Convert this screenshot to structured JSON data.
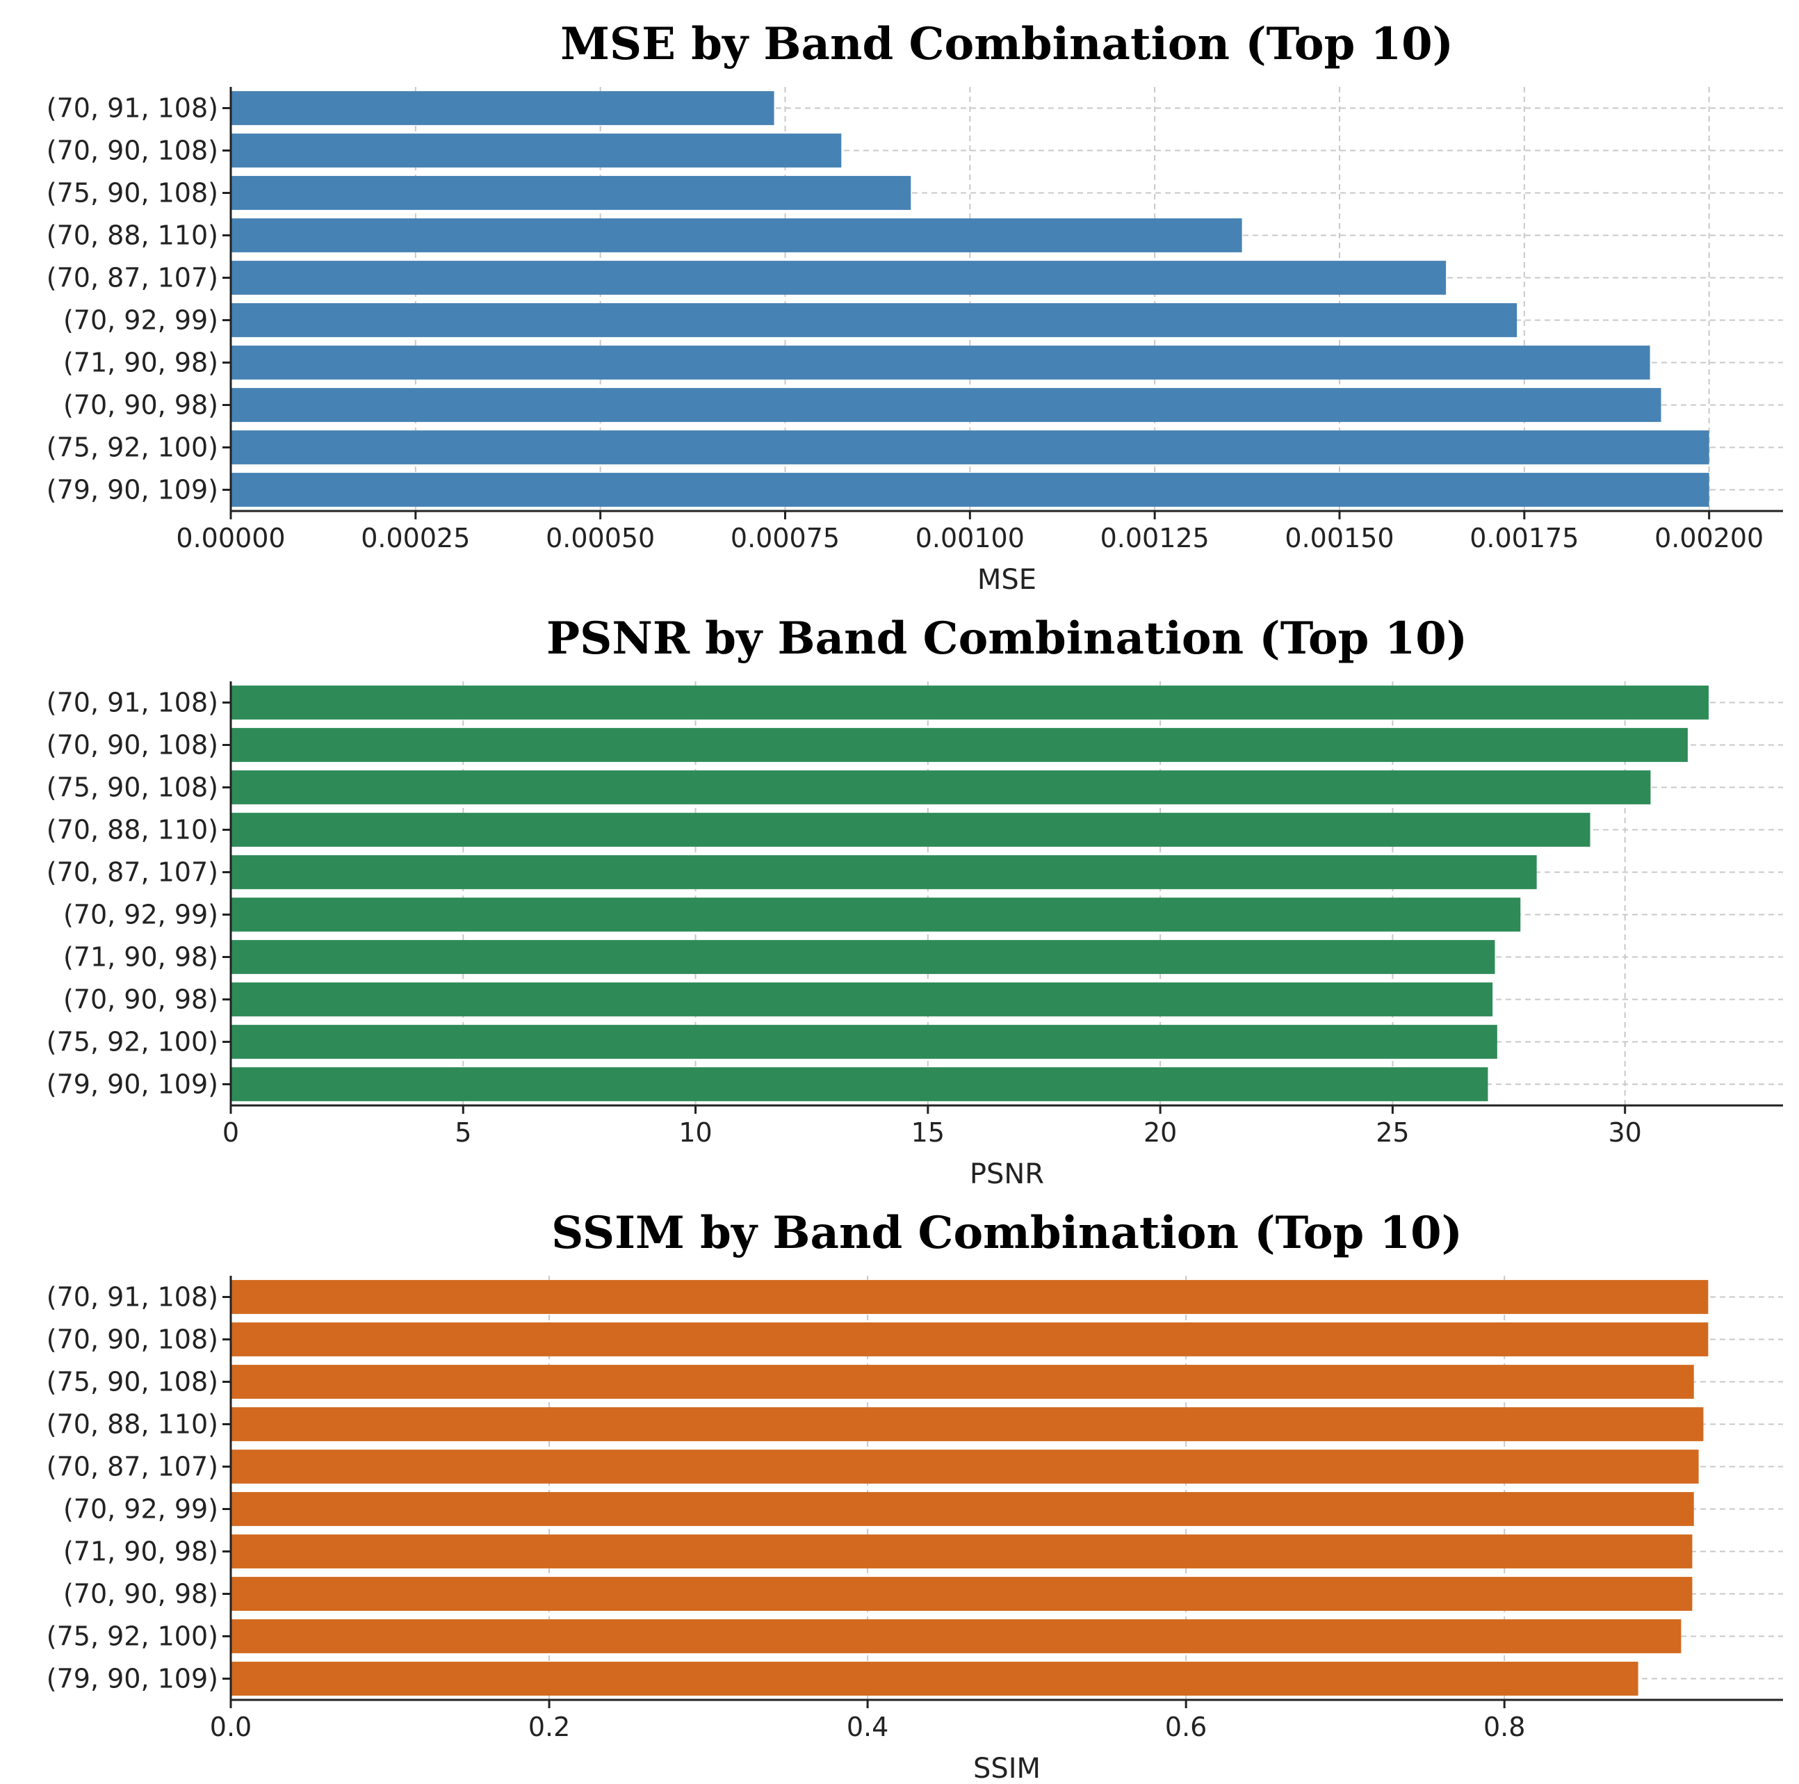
{
  "chart_data": [
    {
      "type": "bar",
      "orientation": "horizontal",
      "title": "MSE by Band Combination (Top 10)",
      "xlabel": "MSE",
      "ylabel": "",
      "color": "#4682b4",
      "xlim": [
        0,
        0.0021
      ],
      "xticks": [
        0,
        0.00025,
        0.0005,
        0.00075,
        0.001,
        0.00125,
        0.0015,
        0.00175,
        0.002
      ],
      "xtick_labels": [
        "0.00000",
        "0.00025",
        "0.00050",
        "0.00075",
        "0.00100",
        "0.00125",
        "0.00150",
        "0.00175",
        "0.00200"
      ],
      "categories": [
        "(70, 91, 108)",
        "(70, 90, 108)",
        "(75, 90, 108)",
        "(70, 88, 110)",
        "(70, 87, 107)",
        "(70, 92, 99)",
        "(71, 90, 98)",
        "(70, 90, 98)",
        "(75, 92, 100)",
        "(79, 90, 109)"
      ],
      "values": [
        0.000735,
        0.000826,
        0.00092,
        0.001368,
        0.001644,
        0.00174,
        0.00192,
        0.001935,
        0.002,
        0.002
      ],
      "grid": true
    },
    {
      "type": "bar",
      "orientation": "horizontal",
      "title": "PSNR by Band Combination (Top 10)",
      "xlabel": "PSNR",
      "ylabel": "",
      "color": "#2e8b57",
      "xlim": [
        0,
        33.4
      ],
      "xticks": [
        0,
        5,
        10,
        15,
        20,
        25,
        30
      ],
      "xtick_labels": [
        "0",
        "5",
        "10",
        "15",
        "20",
        "25",
        "30"
      ],
      "categories": [
        "(70, 91, 108)",
        "(70, 90, 108)",
        "(75, 90, 108)",
        "(70, 88, 110)",
        "(70, 87, 107)",
        "(70, 92, 99)",
        "(71, 90, 98)",
        "(70, 90, 98)",
        "(75, 92, 100)",
        "(79, 90, 109)"
      ],
      "values": [
        31.8,
        31.35,
        30.55,
        29.25,
        28.1,
        27.75,
        27.2,
        27.15,
        27.25,
        27.05
      ],
      "grid": true
    },
    {
      "type": "bar",
      "orientation": "horizontal",
      "title": "SSIM by Band Combination (Top 10)",
      "xlabel": "SSIM",
      "ylabel": "",
      "color": "#d2691e",
      "xlim": [
        0,
        0.975
      ],
      "xticks": [
        0,
        0.2,
        0.4,
        0.6,
        0.8
      ],
      "xtick_labels": [
        "0.0",
        "0.2",
        "0.4",
        "0.6",
        "0.8"
      ],
      "categories": [
        "(70, 91, 108)",
        "(70, 90, 108)",
        "(75, 90, 108)",
        "(70, 88, 110)",
        "(70, 87, 107)",
        "(70, 92, 99)",
        "(71, 90, 98)",
        "(70, 90, 98)",
        "(75, 92, 100)",
        "(79, 90, 109)"
      ],
      "values": [
        0.928,
        0.928,
        0.919,
        0.925,
        0.922,
        0.919,
        0.918,
        0.918,
        0.911,
        0.884
      ],
      "grid": true
    }
  ]
}
